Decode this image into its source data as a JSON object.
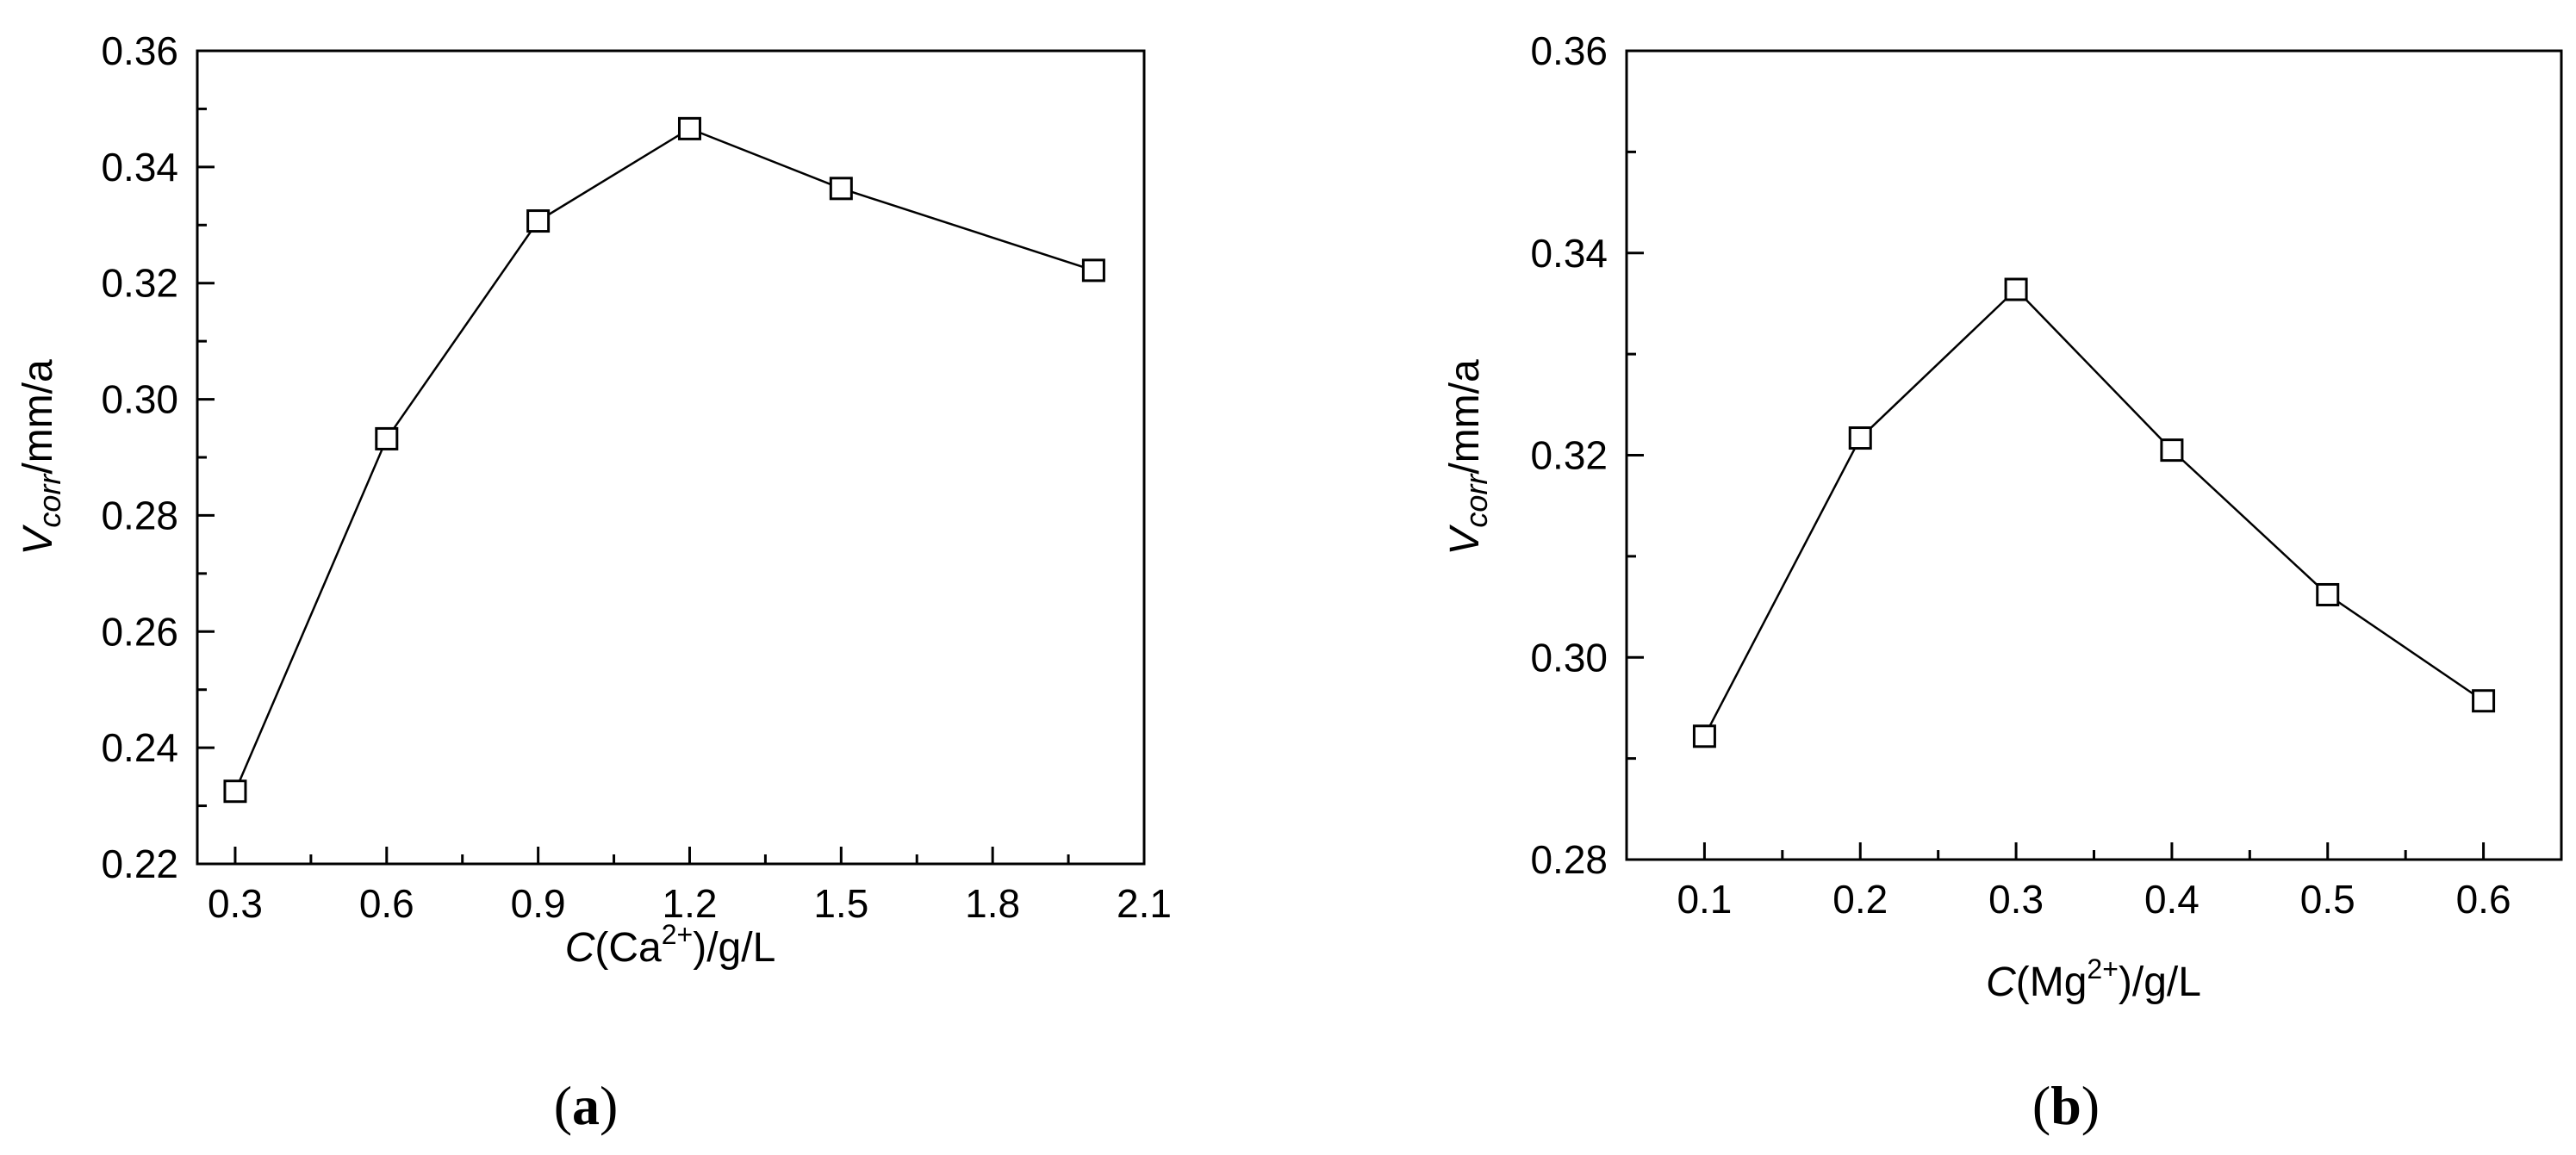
{
  "chart_data": [
    {
      "type": "line",
      "marker": "open-square",
      "panel_label_open": "(",
      "panel_label_letter": "a",
      "panel_label_close": ")",
      "ylabel_main": "V",
      "ylabel_sub": "corr",
      "ylabel_unit": "/mm/a",
      "xlabel_main": "C",
      "xlabel_ion_open": "(Ca",
      "xlabel_charge": "2+",
      "xlabel_unit": ")/g/L",
      "xlim": [
        0.225,
        2.1
      ],
      "ylim": [
        0.22,
        0.36
      ],
      "xticks": [
        "0.3",
        "0.6",
        "0.9",
        "1.2",
        "1.5",
        "1.8",
        "2.1"
      ],
      "yticks": [
        "0.22",
        "0.24",
        "0.26",
        "0.28",
        "0.30",
        "0.32",
        "0.34",
        "0.36"
      ],
      "series": [
        {
          "x": [
            0.3,
            0.6,
            0.9,
            1.2,
            1.5,
            2.0
          ],
          "y": [
            0.2325,
            0.2932,
            0.3307,
            0.3466,
            0.3363,
            0.3222
          ]
        }
      ]
    },
    {
      "type": "line",
      "marker": "open-square",
      "panel_label_open": "(",
      "panel_label_letter": "b",
      "panel_label_close": ")",
      "ylabel_main": "V",
      "ylabel_sub": "corr",
      "ylabel_unit": "/mm/a",
      "xlabel_main": "C",
      "xlabel_ion_open": "(Mg",
      "xlabel_charge": "2+",
      "xlabel_unit": ")/g/L",
      "xlim": [
        0.05,
        0.65
      ],
      "ylim": [
        0.28,
        0.36
      ],
      "xticks": [
        "0.1",
        "0.2",
        "0.3",
        "0.4",
        "0.5",
        "0.6"
      ],
      "yticks": [
        "0.28",
        "0.30",
        "0.32",
        "0.34",
        "0.36"
      ],
      "series": [
        {
          "x": [
            0.1,
            0.2,
            0.3,
            0.4,
            0.5,
            0.6
          ],
          "y": [
            0.2922,
            0.3217,
            0.3364,
            0.3205,
            0.3062,
            0.2957
          ]
        }
      ]
    }
  ]
}
